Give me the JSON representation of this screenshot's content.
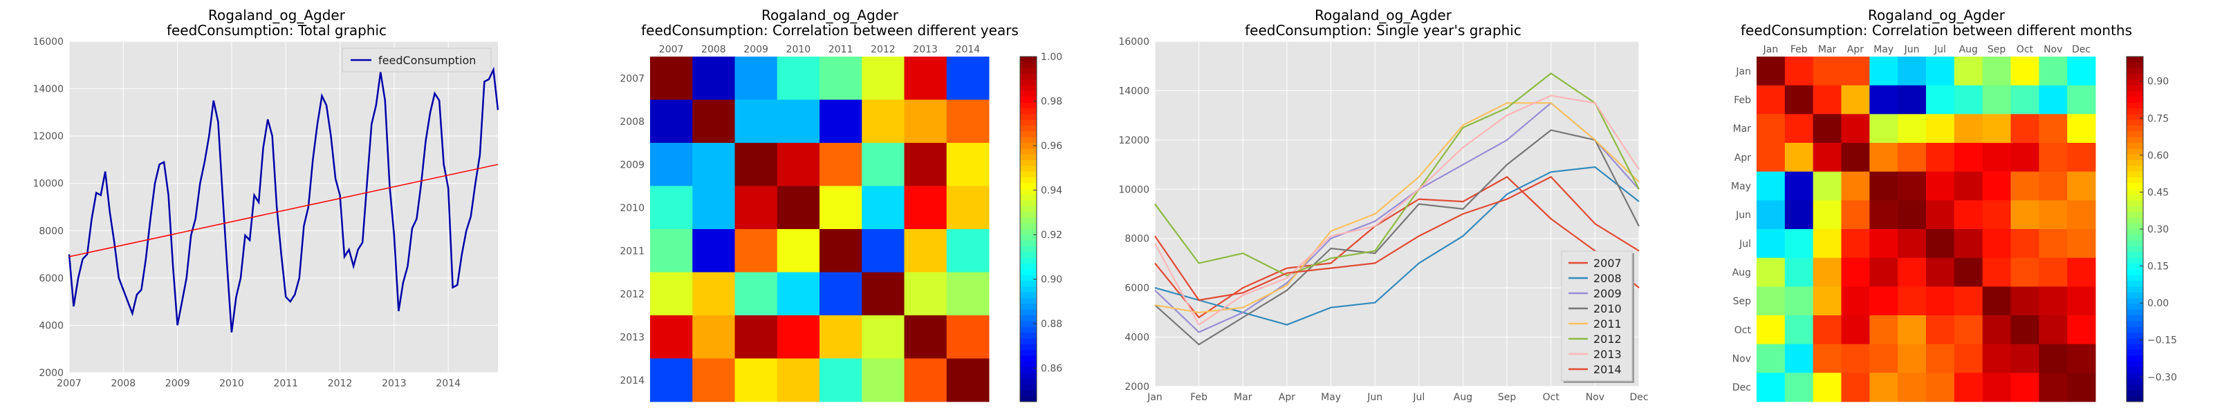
{
  "chart_data": [
    {
      "type": "line",
      "title": "Rogaland_og_Agder",
      "subtitle": "feedConsumption: Total graphic",
      "x_tick_labels": [
        "2007",
        "2008",
        "2009",
        "2010",
        "2011",
        "2012",
        "2013",
        "2014"
      ],
      "x_range": [
        "2007-01",
        "2014-12"
      ],
      "ylim": [
        2000,
        16000
      ],
      "y_ticks": [
        2000,
        4000,
        6000,
        8000,
        10000,
        12000,
        14000,
        16000
      ],
      "legend": "top-right",
      "grid": true,
      "series": [
        {
          "name": "feedConsumption",
          "color": "#0000aa",
          "x": [
            "2007-01",
            "2007-02",
            "2007-03",
            "2007-04",
            "2007-05",
            "2007-06",
            "2007-07",
            "2007-08",
            "2007-09",
            "2007-10",
            "2007-11",
            "2007-12",
            "2008-01",
            "2008-02",
            "2008-03",
            "2008-04",
            "2008-05",
            "2008-06",
            "2008-07",
            "2008-08",
            "2008-09",
            "2008-10",
            "2008-11",
            "2008-12",
            "2009-01",
            "2009-02",
            "2009-03",
            "2009-04",
            "2009-05",
            "2009-06",
            "2009-07",
            "2009-08",
            "2009-09",
            "2009-10",
            "2009-11",
            "2009-12",
            "2010-01",
            "2010-02",
            "2010-03",
            "2010-04",
            "2010-05",
            "2010-06",
            "2010-07",
            "2010-08",
            "2010-09",
            "2010-10",
            "2010-11",
            "2010-12",
            "2011-01",
            "2011-02",
            "2011-03",
            "2011-04",
            "2011-05",
            "2011-06",
            "2011-07",
            "2011-08",
            "2011-09",
            "2011-10",
            "2011-11",
            "2011-12",
            "2012-01",
            "2012-02",
            "2012-03",
            "2012-04",
            "2012-05",
            "2012-06",
            "2012-07",
            "2012-08",
            "2012-09",
            "2012-10",
            "2012-11",
            "2012-12",
            "2013-01",
            "2013-02",
            "2013-03",
            "2013-04",
            "2013-05",
            "2013-06",
            "2013-07",
            "2013-08",
            "2013-09",
            "2013-10",
            "2013-11",
            "2013-12",
            "2014-01",
            "2014-02",
            "2014-03",
            "2014-04",
            "2014-05",
            "2014-06",
            "2014-07",
            "2014-08",
            "2014-09",
            "2014-10",
            "2014-11",
            "2014-12"
          ],
          "y": [
            7000,
            4800,
            6000,
            6800,
            7000,
            8500,
            9600,
            9500,
            10500,
            8800,
            7500,
            6000,
            5500,
            5000,
            4500,
            5300,
            5500,
            6800,
            8500,
            10000,
            10800,
            10900,
            9500,
            6500,
            4000,
            5000,
            6000,
            7800,
            8500,
            10000,
            10900,
            12000,
            13500,
            12600,
            9500,
            6500,
            3700,
            5200,
            6000,
            7800,
            7600,
            9500,
            9200,
            11500,
            12700,
            12000,
            9000,
            7000,
            5200,
            5000,
            5300,
            6000,
            8200,
            9000,
            11000,
            12500,
            13700,
            13300,
            12000,
            10200,
            9500,
            6900,
            7200,
            6500,
            7200,
            7500,
            10000,
            12500,
            13300,
            14700,
            13500,
            9900,
            7800,
            4600,
            5800,
            6500,
            8100,
            8500,
            10000,
            11800,
            13000,
            13800,
            13500,
            10800,
            9800,
            5600,
            5700,
            7000,
            8000,
            8600,
            10000,
            11200,
            14300,
            14400,
            14800,
            13100
          ]
        },
        {
          "name": "",
          "color": "#ff0000",
          "x": [
            "2007-01",
            "2014-12"
          ],
          "y": [
            6900,
            10800
          ]
        }
      ]
    },
    {
      "type": "heatmap",
      "title": "Rogaland_og_Agder",
      "subtitle": "feedConsumption: Correlation between different years",
      "x_labels": [
        "2007",
        "2008",
        "2009",
        "2010",
        "2011",
        "2012",
        "2013",
        "2014"
      ],
      "y_labels": [
        "2007",
        "2008",
        "2009",
        "2010",
        "2011",
        "2012",
        "2013",
        "2014"
      ],
      "values": [
        [
          1.0,
          0.855,
          0.888,
          0.91,
          0.918,
          0.937,
          0.985,
          0.875
        ],
        [
          0.855,
          1.0,
          0.893,
          0.893,
          0.86,
          0.95,
          0.955,
          0.965
        ],
        [
          0.888,
          0.893,
          1.0,
          0.988,
          0.965,
          0.915,
          0.993,
          0.945
        ],
        [
          0.91,
          0.893,
          0.988,
          1.0,
          0.94,
          0.898,
          0.98,
          0.95
        ],
        [
          0.918,
          0.86,
          0.965,
          0.94,
          1.0,
          0.875,
          0.95,
          0.91
        ],
        [
          0.937,
          0.95,
          0.915,
          0.898,
          0.875,
          1.0,
          0.935,
          0.928
        ],
        [
          0.985,
          0.955,
          0.993,
          0.98,
          0.95,
          0.935,
          1.0,
          0.968
        ],
        [
          0.875,
          0.965,
          0.945,
          0.95,
          0.91,
          0.928,
          0.968,
          1.0
        ]
      ],
      "colorbar": {
        "min": 0.845,
        "max": 1.0,
        "ticks": [
          1.0,
          0.98,
          0.96,
          0.94,
          0.92,
          0.9,
          0.88,
          0.86
        ],
        "tick_labels": [
          "1.00",
          "0.98",
          "0.96",
          "0.94",
          "0.92",
          "0.90",
          "0.88",
          "0.86"
        ]
      }
    },
    {
      "type": "line",
      "title": "Rogaland_og_Agder",
      "subtitle": "feedConsumption: Single year's graphic",
      "categories": [
        "Jan",
        "Feb",
        "Mar",
        "Apr",
        "May",
        "Jun",
        "Jul",
        "Aug",
        "Sep",
        "Oct",
        "Nov",
        "Dec"
      ],
      "ylim": [
        2000,
        16000
      ],
      "y_ticks": [
        2000,
        4000,
        6000,
        8000,
        10000,
        12000,
        14000,
        16000
      ],
      "legend": "bottom-right",
      "grid": true,
      "series": [
        {
          "name": "2007",
          "color": "#e24a33",
          "values": [
            7000,
            4800,
            6000,
            6800,
            7000,
            8500,
            9600,
            9500,
            10500,
            8800,
            7500,
            6000
          ]
        },
        {
          "name": "2008",
          "color": "#348abd",
          "values": [
            6000,
            5500,
            5000,
            4500,
            5200,
            5400,
            7000,
            8100,
            9800,
            10700,
            10900,
            9500
          ]
        },
        {
          "name": "2009",
          "color": "#988ed5",
          "values": [
            5900,
            4200,
            5000,
            6200,
            8000,
            8700,
            10000,
            11000,
            12000,
            13500,
            12000,
            10000
          ]
        },
        {
          "name": "2010",
          "color": "#777777",
          "values": [
            5300,
            3700,
            4800,
            5900,
            7600,
            7400,
            9400,
            9200,
            11000,
            12400,
            12000,
            8500
          ]
        },
        {
          "name": "2011",
          "color": "#fbc15e",
          "values": [
            5300,
            5000,
            5200,
            6100,
            8300,
            9000,
            10500,
            12600,
            13500,
            13500,
            12000,
            10300
          ]
        },
        {
          "name": "2012",
          "color": "#8eba42",
          "values": [
            9400,
            7000,
            7400,
            6500,
            7200,
            7500,
            10000,
            12500,
            13300,
            14700,
            13500,
            10000
          ]
        },
        {
          "name": "2013",
          "color": "#ffb5b8",
          "values": [
            7800,
            4500,
            5700,
            6400,
            8100,
            8500,
            10000,
            11700,
            13000,
            13800,
            13500,
            10800
          ]
        },
        {
          "name": "2014",
          "color": "#e24a33",
          "values": [
            8100,
            5500,
            5800,
            6600,
            6800,
            7000,
            8100,
            9000,
            9600,
            10500,
            8600,
            7500
          ]
        }
      ]
    },
    {
      "type": "heatmap",
      "title": "Rogaland_og_Agder",
      "subtitle": "feedConsumption: Correlation between different months",
      "x_labels": [
        "Jan",
        "Feb",
        "Mar",
        "Apr",
        "May",
        "Jun",
        "Jul",
        "Aug",
        "Sep",
        "Oct",
        "Nov",
        "Dec"
      ],
      "y_labels": [
        "Jan",
        "Feb",
        "Mar",
        "Apr",
        "May",
        "Jun",
        "Jul",
        "Aug",
        "Sep",
        "Oct",
        "Nov",
        "Dec"
      ],
      "values": [
        [
          1.0,
          0.78,
          0.73,
          0.73,
          0.1,
          0.05,
          0.1,
          0.4,
          0.32,
          0.48,
          0.26,
          0.12
        ],
        [
          0.78,
          1.0,
          0.78,
          0.58,
          -0.3,
          -0.32,
          0.15,
          0.18,
          0.28,
          0.22,
          0.1,
          0.25
        ],
        [
          0.73,
          0.78,
          1.0,
          0.88,
          0.4,
          0.45,
          0.5,
          0.6,
          0.58,
          0.75,
          0.7,
          0.48
        ],
        [
          0.73,
          0.58,
          0.88,
          1.0,
          0.65,
          0.7,
          0.78,
          0.82,
          0.85,
          0.86,
          0.72,
          0.74
        ],
        [
          0.1,
          -0.3,
          0.4,
          0.65,
          1.0,
          0.98,
          0.85,
          0.9,
          0.82,
          0.68,
          0.7,
          0.62
        ],
        [
          0.05,
          -0.32,
          0.45,
          0.7,
          0.98,
          1.0,
          0.9,
          0.8,
          0.78,
          0.62,
          0.64,
          0.66
        ],
        [
          0.1,
          0.15,
          0.5,
          0.78,
          0.85,
          0.9,
          1.0,
          0.92,
          0.8,
          0.75,
          0.7,
          0.68
        ],
        [
          0.4,
          0.18,
          0.6,
          0.82,
          0.9,
          0.8,
          0.92,
          1.0,
          0.78,
          0.72,
          0.74,
          0.8
        ],
        [
          0.32,
          0.28,
          0.58,
          0.85,
          0.82,
          0.78,
          0.8,
          0.78,
          1.0,
          0.93,
          0.9,
          0.86
        ],
        [
          0.48,
          0.22,
          0.75,
          0.86,
          0.68,
          0.62,
          0.75,
          0.72,
          0.93,
          1.0,
          0.92,
          0.82
        ],
        [
          0.26,
          0.1,
          0.7,
          0.72,
          0.7,
          0.64,
          0.7,
          0.74,
          0.9,
          0.92,
          1.0,
          0.98
        ],
        [
          0.12,
          0.25,
          0.48,
          0.74,
          0.62,
          0.66,
          0.68,
          0.8,
          0.86,
          0.82,
          0.98,
          1.0
        ]
      ],
      "colorbar": {
        "min": -0.4,
        "max": 1.0,
        "ticks": [
          0.9,
          0.75,
          0.6,
          0.45,
          0.3,
          0.15,
          0.0,
          -0.15,
          -0.3
        ],
        "tick_labels": [
          "0.90",
          "0.75",
          "0.60",
          "0.45",
          "0.30",
          "0.15",
          "0.00",
          "−0.15",
          "−0.30"
        ]
      }
    }
  ]
}
